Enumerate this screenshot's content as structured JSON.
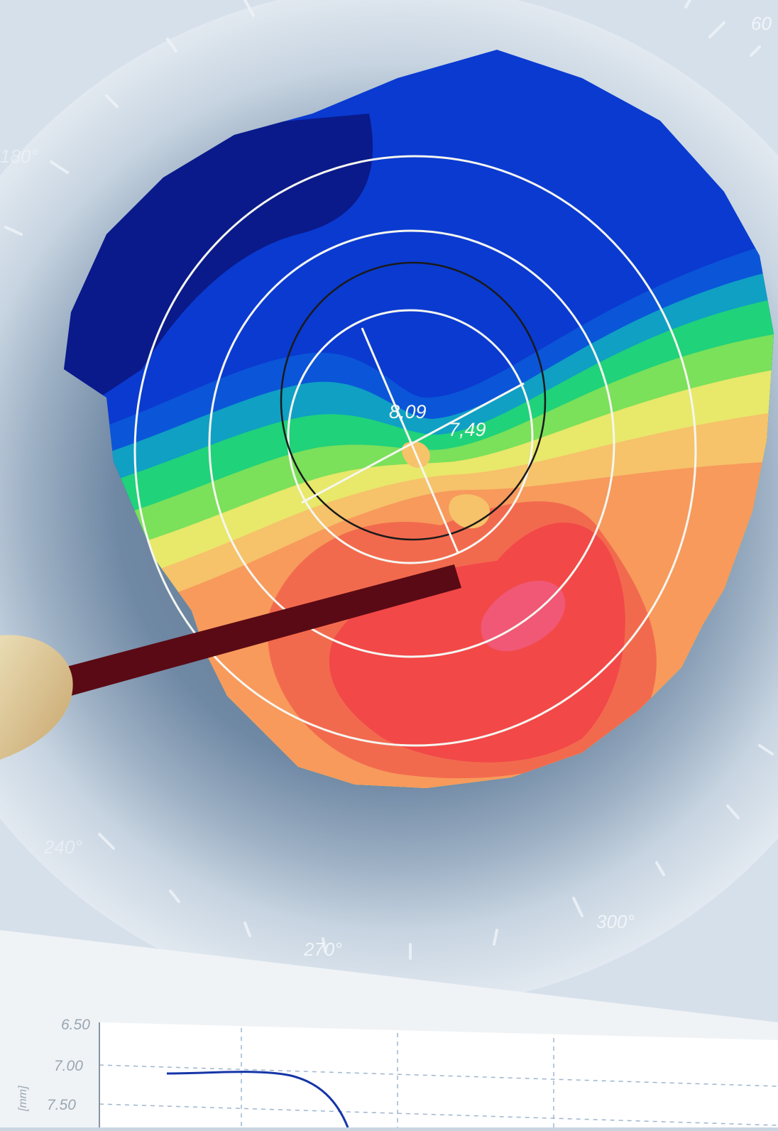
{
  "topography": {
    "center_values": [
      "8,09",
      "7,49"
    ],
    "angle_labels": [
      "60",
      "180°",
      "240°",
      "270°",
      "300°"
    ]
  },
  "plot": {
    "y_tick_labels": [
      "6.50",
      "7.00",
      "7.50"
    ],
    "y_axis_label": "[mm]"
  },
  "colors": {
    "background": "#c9d6e2",
    "map_scale": [
      "#0a1a8a",
      "#0a2fc8",
      "#0b55d8",
      "#0fa0c4",
      "#20d27a",
      "#7be05a",
      "#e8e86a",
      "#f6c26a",
      "#f79a5c",
      "#f26a4e",
      "#f24848",
      "#f05a7a"
    ],
    "pointer": "#5a0a14",
    "curve": "#1535a8"
  }
}
